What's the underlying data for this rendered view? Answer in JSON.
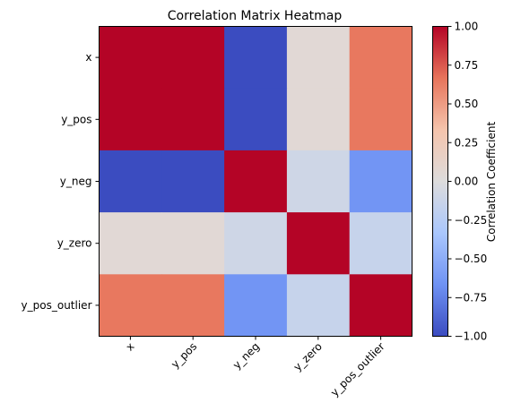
{
  "chart_data": {
    "type": "heatmap",
    "title": "Correlation Matrix Heatmap",
    "rows": [
      "x",
      "y_pos",
      "y_neg",
      "y_zero",
      "y_pos_outlier"
    ],
    "columns": [
      "x",
      "y_pos",
      "y_neg",
      "y_zero",
      "y_pos_outlier"
    ],
    "matrix": [
      [
        1.0,
        1.0,
        -1.0,
        0.05,
        0.65
      ],
      [
        1.0,
        1.0,
        -1.0,
        0.05,
        0.65
      ],
      [
        -1.0,
        -1.0,
        1.0,
        -0.1,
        -0.65
      ],
      [
        0.05,
        0.05,
        -0.1,
        1.0,
        -0.15
      ],
      [
        0.65,
        0.65,
        -0.65,
        -0.15,
        1.0
      ]
    ],
    "colormap": "coolwarm",
    "colorbar": {
      "label": "Correlation Coefficient",
      "vmin": -1.0,
      "vmax": 1.0,
      "ticks": [
        "1.00",
        "0.75",
        "0.50",
        "0.25",
        "0.00",
        "−0.25",
        "−0.50",
        "−0.75",
        "−1.00"
      ],
      "gradient_colors": [
        "#b40426",
        "#e7745b",
        "#f5c4ac",
        "#dddcdc",
        "#aac7fd",
        "#6f92f3",
        "#3b4cc0"
      ]
    },
    "x_tick_rotation_deg": 45
  }
}
